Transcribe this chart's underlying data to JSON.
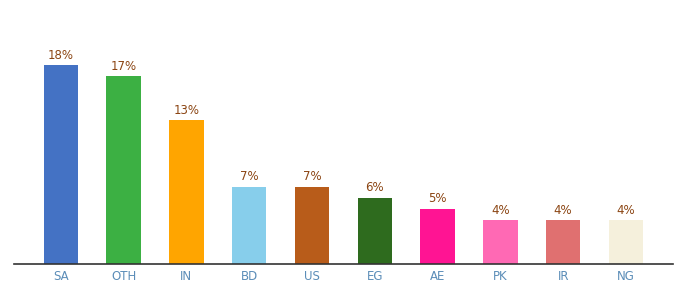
{
  "categories": [
    "SA",
    "OTH",
    "IN",
    "BD",
    "US",
    "EG",
    "AE",
    "PK",
    "IR",
    "NG"
  ],
  "values": [
    18,
    17,
    13,
    7,
    7,
    6,
    5,
    4,
    4,
    4
  ],
  "bar_colors": [
    "#4472C4",
    "#3CB043",
    "#FFA500",
    "#87CEEB",
    "#B85C1A",
    "#2E6B1E",
    "#FF1493",
    "#FF69B4",
    "#E07070",
    "#F5F0DC"
  ],
  "title": "",
  "ylim": [
    0,
    22
  ],
  "bar_width": 0.55,
  "label_color": "#8B4513",
  "label_fontsize": 8.5,
  "tick_fontsize": 8.5,
  "tick_color": "#5B8DB8",
  "background_color": "#ffffff"
}
